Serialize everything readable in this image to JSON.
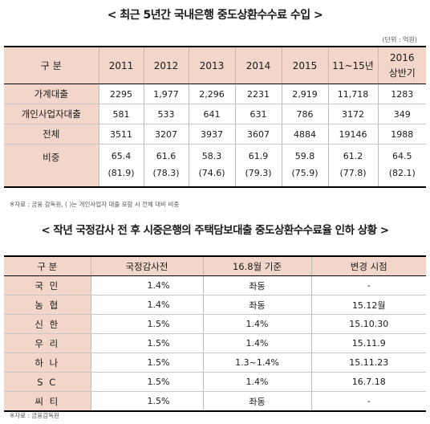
{
  "title1": "< 최근 5년간 국내은행 중도상환수수료 수입 >",
  "unit": "(단위 : 억원)",
  "table1": {
    "header": {
      "label": "구   분",
      "years": [
        "2011",
        "2012",
        "2013",
        "2014",
        "2015",
        "11~15년"
      ],
      "last_line1": "2016",
      "last_line2": "상반기"
    },
    "rows": [
      {
        "label": "가계대출",
        "values": [
          "2295",
          "1,977",
          "2,296",
          "2231",
          "2,919",
          "11,718",
          "1283"
        ]
      },
      {
        "label": "개인사업자대출",
        "values": [
          "581",
          "533",
          "641",
          "631",
          "786",
          "3172",
          "349"
        ]
      },
      {
        "label": "전체",
        "values": [
          "3511",
          "3207",
          "3937",
          "3607",
          "4884",
          "19146",
          "1988"
        ]
      }
    ],
    "ratio": {
      "label": "비중",
      "values": [
        "65.4",
        "61.6",
        "58.3",
        "61.9",
        "59.8",
        "61.2",
        "64.5"
      ],
      "subs": [
        "(81.9)",
        "(78.3)",
        "(74.6)",
        "(79.3)",
        "(75.9)",
        "(77.8)",
        "(82.1)"
      ]
    }
  },
  "note1": "※자료 : 금융 감독원, (  )는 개인사업자 대출 포함 시 전체 대비 비중",
  "title2": "< 작년 국정감사 전 후 시중은행의 주택담보대출 중도상환수수료율 인하 상황 >",
  "table2": {
    "header": [
      "구  분",
      "국정감사전",
      "16.8월 기준",
      "변경 시점"
    ],
    "rows": [
      {
        "bank": "국 민",
        "before": "1.4%",
        "current": "좌동",
        "changed": "-"
      },
      {
        "bank": "농 협",
        "before": "1.4%",
        "current": "좌동",
        "changed": "15.12월"
      },
      {
        "bank": "신 한",
        "before": "1.5%",
        "current": "1.4%",
        "changed": "15.10.30"
      },
      {
        "bank": "우 리",
        "before": "1.5%",
        "current": "1.4%",
        "changed": "15.11.9"
      },
      {
        "bank": "하 나",
        "before": "1.5%",
        "current": "1.3~1.4%",
        "changed": "15.11.23"
      },
      {
        "bank": "S C",
        "before": "1.5%",
        "current": "1.4%",
        "changed": "16.7.18"
      },
      {
        "bank": "씨 티",
        "before": "1.5%",
        "current": "좌동",
        "changed": "-"
      }
    ]
  },
  "note2": "※자료 : 금융감독원"
}
